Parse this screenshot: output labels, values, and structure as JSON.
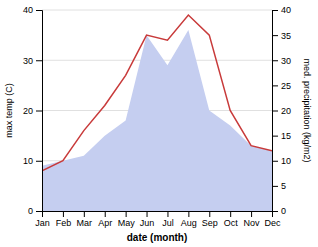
{
  "chart_data": {
    "type": "line",
    "categories": [
      "Jan",
      "Feb",
      "Mar",
      "Apr",
      "May",
      "Jun",
      "Jul",
      "Aug",
      "Sep",
      "Oct",
      "Nov",
      "Dec"
    ],
    "x_label": "date (month)",
    "y_label": "max temp (C)",
    "y2_label": "med. precipitation (kg/m2)",
    "ylim": [
      0,
      40
    ],
    "yticks": [
      0,
      10,
      20,
      30,
      40
    ],
    "y2lim": [
      0,
      40
    ],
    "y2ticks": [
      0,
      5,
      10,
      15,
      20,
      25,
      30,
      35,
      40
    ],
    "grid": true,
    "series": [
      {
        "type": "area",
        "axis": "y2",
        "color": "#c5cef0",
        "values": [
          9,
          10,
          11,
          15,
          18,
          35,
          29,
          36,
          20,
          17,
          13,
          12
        ]
      },
      {
        "type": "line",
        "color": "#c83a3a",
        "values": [
          8,
          10,
          16,
          21,
          27,
          35,
          34,
          39,
          35,
          20,
          13,
          12
        ]
      }
    ]
  }
}
